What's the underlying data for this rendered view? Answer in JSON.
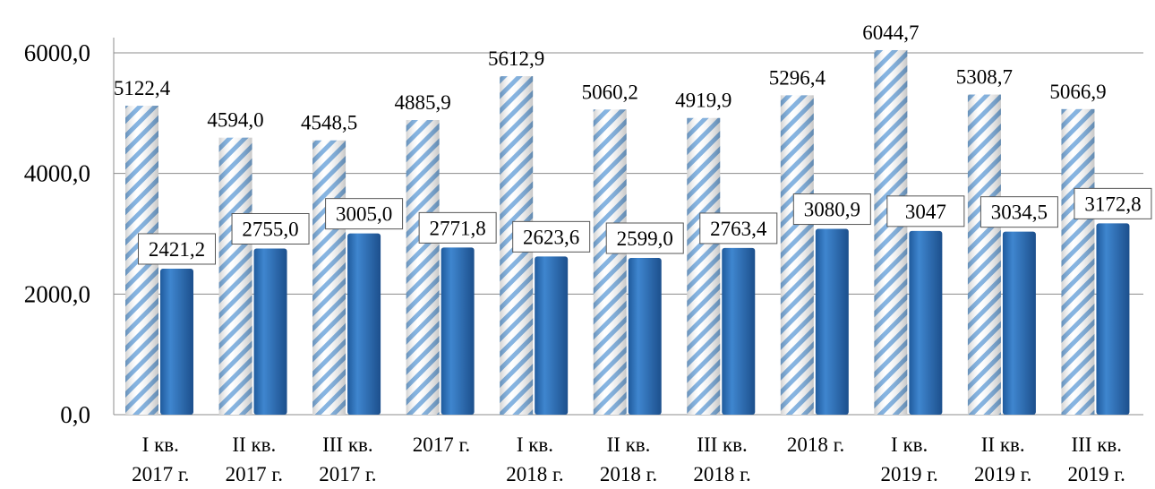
{
  "chart_data": {
    "type": "bar",
    "title": "",
    "xlabel": "",
    "ylabel": "",
    "ylim": [
      0,
      6000
    ],
    "yticks": [
      {
        "value": 0,
        "label": "0,0"
      },
      {
        "value": 2000,
        "label": "2000,0"
      },
      {
        "value": 4000,
        "label": "4000,0"
      },
      {
        "value": 6000,
        "label": "6000,0"
      }
    ],
    "grid": true,
    "legend": "none",
    "categories": [
      [
        "I кв.",
        "2017 г."
      ],
      [
        "II кв.",
        "2017 г."
      ],
      [
        "III кв.",
        "2017 г."
      ],
      [
        "2017 г.",
        ""
      ],
      [
        "I кв.",
        "2018 г."
      ],
      [
        "II кв.",
        "2018 г."
      ],
      [
        "III кв.",
        "2018 г."
      ],
      [
        "2018 г.",
        ""
      ],
      [
        "I кв.",
        "2019 г."
      ],
      [
        "II кв.",
        "2019 г."
      ],
      [
        "III кв.",
        "2019 г."
      ]
    ],
    "series": [
      {
        "style": "hatched",
        "color": "#7fb0e0",
        "values": [
          5122.4,
          4594.0,
          4548.5,
          4885.9,
          5612.9,
          5060.2,
          4919.9,
          5296.4,
          6044.7,
          5308.7,
          5066.9
        ],
        "labels": [
          "5122,4",
          "4594,0",
          "4548,5",
          "4885,9",
          "5612,9",
          "5060,2",
          "4919,9",
          "5296,4",
          "6044,7",
          "5308,7",
          "5066,9"
        ]
      },
      {
        "style": "solid",
        "color": "#2e6db4",
        "values": [
          2421.2,
          2755.0,
          3005.0,
          2771.8,
          2623.6,
          2599.0,
          2763.4,
          3080.9,
          3047,
          3034.5,
          3172.8
        ],
        "labels": [
          "2421,2",
          "2755,0",
          "3005,0",
          "2771,8",
          "2623,6",
          "2599,0",
          "2763,4",
          "3080,9",
          "3047",
          "3034,5",
          "3172,8"
        ]
      }
    ]
  }
}
